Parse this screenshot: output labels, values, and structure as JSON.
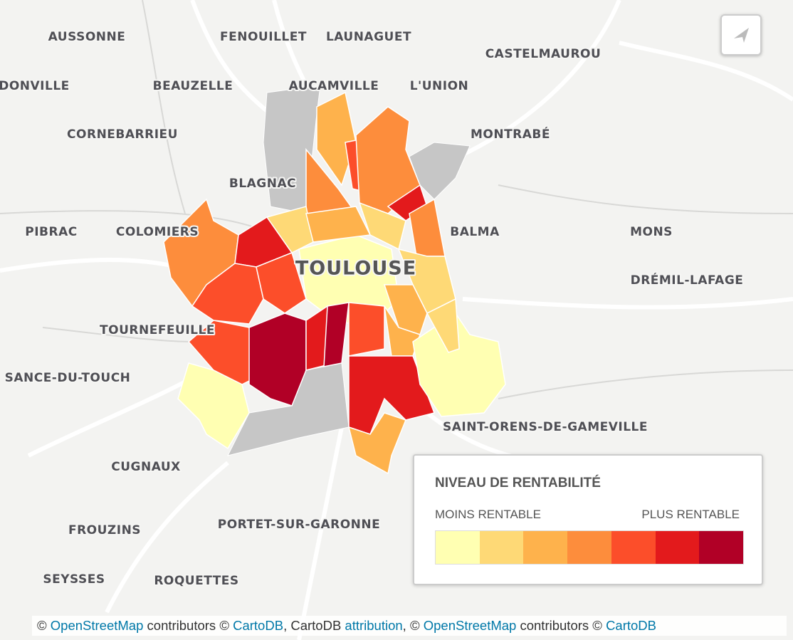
{
  "map": {
    "place_labels": [
      "AUSSONNE",
      "FENOUILLET",
      "LAUNAGUET",
      "CASTELMAUROU",
      "DONVILLE",
      "BEAUZELLE",
      "AUCAMVILLE",
      "L'UNION",
      "CORNEBARRIEU",
      "MONTRABÉ",
      "BLAGNAC",
      "PIBRAC",
      "COLOMIERS",
      "BALMA",
      "MONS",
      "DRÉMIL-LAFAGE",
      "TOURNEFEUILLE",
      "SANCE-DU-TOUCH",
      "SAINT-ORENS-DE-GAMEVILLE",
      "CUGNAUX",
      "FROUZINS",
      "PORTET-SUR-GARONNE",
      "SEYSSES",
      "ROQUETTES"
    ],
    "city_label": "TOULOUSE",
    "district_levels": [
      3,
      4,
      5,
      4,
      6,
      4,
      4,
      6,
      5,
      2,
      1,
      3,
      2,
      2,
      3,
      5,
      5,
      7,
      6,
      7,
      5,
      3,
      6,
      3,
      1,
      1,
      2
    ]
  },
  "legend": {
    "title": "NIVEAU DE RENTABILITÉ",
    "low_label": "MOINS RENTABLE",
    "high_label": "PLUS RENTABLE",
    "colors": [
      "#ffffb2",
      "#fed976",
      "#feb24c",
      "#fd8d3c",
      "#fc4e2a",
      "#e31a1c",
      "#b10026"
    ]
  },
  "attribution": [
    {
      "text": "© ",
      "link": false
    },
    {
      "text": "OpenStreetMap",
      "link": true
    },
    {
      "text": " contributors © ",
      "link": false
    },
    {
      "text": "CartoDB",
      "link": true
    },
    {
      "text": ", CartoDB ",
      "link": false
    },
    {
      "text": "attribution",
      "link": true
    },
    {
      "text": ", © ",
      "link": false
    },
    {
      "text": "OpenStreetMap",
      "link": true
    },
    {
      "text": " contributors © ",
      "link": false
    },
    {
      "text": "CartoDB",
      "link": true
    }
  ]
}
